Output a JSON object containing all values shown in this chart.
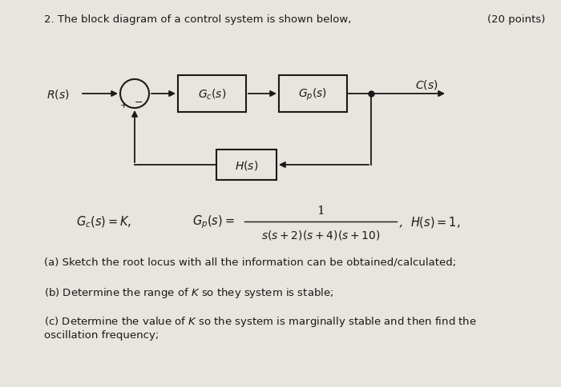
{
  "title": "2. The block diagram of a control system is shown below,",
  "points": "(20 points)",
  "bg_color": "#e8e4de",
  "text_color": "#1a1a1a",
  "part_a": "(a) Sketch the root locus with all the information can be obtained/calculated;",
  "part_b": "(b) Determine the range of $K$ so they system is stable;",
  "part_c": "(c) Determine the value of $K$ so the system is marginally stable and then find the\noscillation frequency;"
}
